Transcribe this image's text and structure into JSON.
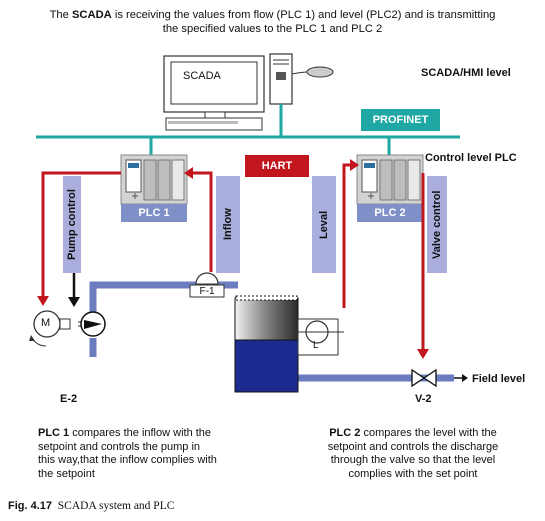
{
  "intro": {
    "line1_pre": "The ",
    "line1_bold": "SCADA",
    "line1_post": " is receiving the values from flow (PLC 1) and level (PLC2) and is transmitting",
    "line2": "the specified values to the PLC 1 and PLC 2"
  },
  "levels": {
    "scada_hmi": "SCADA/HMI level",
    "control": "Control level PLC",
    "field": "Field level"
  },
  "scada_screen_label": "SCADA",
  "network": {
    "profinet": "PROFINET",
    "hart": "HART"
  },
  "plc1": {
    "label": "PLC 1"
  },
  "plc2": {
    "label": "PLC 2"
  },
  "signals": {
    "pump_control": "Pump control",
    "inflow": "Inflow",
    "level": "Leval",
    "valve_control": "Valve control"
  },
  "field": {
    "motor": "M",
    "flow_sensor": "F-1",
    "level_sensor": "L",
    "pump_id": "E-2",
    "valve_id": "V-2"
  },
  "descriptions": {
    "plc1_bold": "PLC 1",
    "plc1_lines": [
      " compares the inflow with the",
      "setpoint and controls the pump in",
      "this way,that the inflow complies with",
      "the setpoint"
    ],
    "plc2_bold": "PLC 2",
    "plc2_lines": [
      " compares the level with the",
      "setpoint and controls the discharge",
      "through the valve so that the level",
      "complies with the set point"
    ]
  },
  "caption": {
    "label": "Fig. 4.17",
    "text": "SCADA system and PLC"
  },
  "colors": {
    "network_teal": "#1fa7a3",
    "hart_red": "#c2151d",
    "signal_lavender": "#a9aedd",
    "pipe_blue": "#6b7cc0",
    "liquid_navy": "#1d2a8f",
    "plc_label_blue": "#7f90c8"
  }
}
